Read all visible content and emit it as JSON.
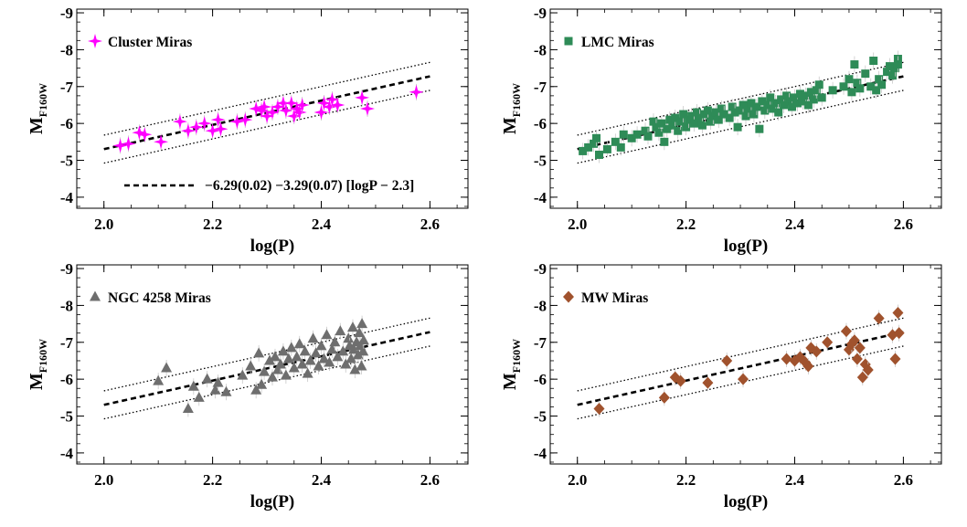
{
  "chart_data": [
    {
      "type": "scatter",
      "legend": {
        "label": "Cluster Miras",
        "marker": "star",
        "position": "top-left"
      },
      "color": "#ff00ff",
      "xlabel": "log(P)",
      "ylabel_main": "M",
      "ylabel_sub": "F160W",
      "xlim": [
        1.95,
        2.67
      ],
      "ylim": [
        -3.7,
        -9.1
      ],
      "y_inverted": true,
      "xticks": [
        "2.0",
        "2.2",
        "2.4",
        "2.6"
      ],
      "yticks": [
        "-4",
        "-5",
        "-6",
        "-7",
        "-8",
        "-9"
      ],
      "fit_label": "−6.29(0.02) −3.29(0.07) [logP − 2.3]",
      "fit": {
        "intercept": -6.29,
        "slope": -3.29,
        "pivot": 2.3,
        "scatter": 0.38,
        "x_range": [
          2.0,
          2.6
        ]
      },
      "points": [
        {
          "x": 2.03,
          "y": -5.4
        },
        {
          "x": 2.045,
          "y": -5.45
        },
        {
          "x": 2.065,
          "y": -5.75
        },
        {
          "x": 2.075,
          "y": -5.7
        },
        {
          "x": 2.105,
          "y": -5.5
        },
        {
          "x": 2.14,
          "y": -6.05
        },
        {
          "x": 2.155,
          "y": -5.8
        },
        {
          "x": 2.17,
          "y": -5.9
        },
        {
          "x": 2.185,
          "y": -6.0
        },
        {
          "x": 2.2,
          "y": -5.8
        },
        {
          "x": 2.21,
          "y": -6.1
        },
        {
          "x": 2.215,
          "y": -5.85
        },
        {
          "x": 2.245,
          "y": -6.05
        },
        {
          "x": 2.26,
          "y": -6.1
        },
        {
          "x": 2.28,
          "y": -6.4
        },
        {
          "x": 2.29,
          "y": -6.35
        },
        {
          "x": 2.295,
          "y": -6.45
        },
        {
          "x": 2.3,
          "y": -6.2
        },
        {
          "x": 2.31,
          "y": -6.3
        },
        {
          "x": 2.32,
          "y": -6.45
        },
        {
          "x": 2.33,
          "y": -6.55
        },
        {
          "x": 2.335,
          "y": -6.35
        },
        {
          "x": 2.345,
          "y": -6.55
        },
        {
          "x": 2.35,
          "y": -6.2
        },
        {
          "x": 2.355,
          "y": -6.4
        },
        {
          "x": 2.36,
          "y": -6.3
        },
        {
          "x": 2.365,
          "y": -6.5
        },
        {
          "x": 2.4,
          "y": -6.3
        },
        {
          "x": 2.405,
          "y": -6.55
        },
        {
          "x": 2.415,
          "y": -6.45
        },
        {
          "x": 2.42,
          "y": -6.65
        },
        {
          "x": 2.43,
          "y": -6.5
        },
        {
          "x": 2.475,
          "y": -6.7
        },
        {
          "x": 2.485,
          "y": -6.4
        },
        {
          "x": 2.575,
          "y": -6.85
        }
      ]
    },
    {
      "type": "scatter",
      "legend": {
        "label": "LMC Miras",
        "marker": "square",
        "position": "top-left"
      },
      "color": "#2e8b57",
      "xlabel": "log(P)",
      "ylabel_main": "M",
      "ylabel_sub": "F160W",
      "xlim": [
        1.95,
        2.67
      ],
      "ylim": [
        -3.7,
        -9.1
      ],
      "y_inverted": true,
      "xticks": [
        "2.0",
        "2.2",
        "2.4",
        "2.6"
      ],
      "yticks": [
        "-4",
        "-5",
        "-6",
        "-7",
        "-8",
        "-9"
      ],
      "fit_label": "",
      "fit": {
        "intercept": -6.29,
        "slope": -3.29,
        "pivot": 2.3,
        "scatter": 0.38,
        "x_range": [
          2.0,
          2.6
        ]
      },
      "points": [
        {
          "x": 2.01,
          "y": -5.25
        },
        {
          "x": 2.02,
          "y": -5.35
        },
        {
          "x": 2.03,
          "y": -5.45
        },
        {
          "x": 2.035,
          "y": -5.6
        },
        {
          "x": 2.04,
          "y": -5.15
        },
        {
          "x": 2.055,
          "y": -5.3
        },
        {
          "x": 2.07,
          "y": -5.5
        },
        {
          "x": 2.08,
          "y": -5.35
        },
        {
          "x": 2.085,
          "y": -5.7
        },
        {
          "x": 2.1,
          "y": -5.6
        },
        {
          "x": 2.11,
          "y": -5.7
        },
        {
          "x": 2.125,
          "y": -5.8
        },
        {
          "x": 2.13,
          "y": -5.65
        },
        {
          "x": 2.14,
          "y": -6.05
        },
        {
          "x": 2.145,
          "y": -5.9
        },
        {
          "x": 2.15,
          "y": -5.75
        },
        {
          "x": 2.155,
          "y": -6.0
        },
        {
          "x": 2.16,
          "y": -5.5
        },
        {
          "x": 2.165,
          "y": -5.85
        },
        {
          "x": 2.17,
          "y": -6.1
        },
        {
          "x": 2.175,
          "y": -5.95
        },
        {
          "x": 2.18,
          "y": -6.15
        },
        {
          "x": 2.185,
          "y": -5.8
        },
        {
          "x": 2.19,
          "y": -6.05
        },
        {
          "x": 2.195,
          "y": -6.25
        },
        {
          "x": 2.2,
          "y": -5.9
        },
        {
          "x": 2.205,
          "y": -6.1
        },
        {
          "x": 2.21,
          "y": -6.2
        },
        {
          "x": 2.215,
          "y": -6.0
        },
        {
          "x": 2.22,
          "y": -6.3
        },
        {
          "x": 2.225,
          "y": -6.15
        },
        {
          "x": 2.23,
          "y": -5.95
        },
        {
          "x": 2.235,
          "y": -6.25
        },
        {
          "x": 2.24,
          "y": -6.35
        },
        {
          "x": 2.245,
          "y": -6.05
        },
        {
          "x": 2.25,
          "y": -6.2
        },
        {
          "x": 2.255,
          "y": -6.3
        },
        {
          "x": 2.26,
          "y": -6.1
        },
        {
          "x": 2.265,
          "y": -6.4
        },
        {
          "x": 2.27,
          "y": -6.25
        },
        {
          "x": 2.28,
          "y": -6.15
        },
        {
          "x": 2.285,
          "y": -6.45
        },
        {
          "x": 2.29,
          "y": -6.3
        },
        {
          "x": 2.295,
          "y": -5.9
        },
        {
          "x": 2.3,
          "y": -6.35
        },
        {
          "x": 2.305,
          "y": -6.5
        },
        {
          "x": 2.31,
          "y": -6.2
        },
        {
          "x": 2.315,
          "y": -6.4
        },
        {
          "x": 2.32,
          "y": -6.55
        },
        {
          "x": 2.325,
          "y": -6.25
        },
        {
          "x": 2.33,
          "y": -6.45
        },
        {
          "x": 2.335,
          "y": -5.85
        },
        {
          "x": 2.34,
          "y": -6.6
        },
        {
          "x": 2.345,
          "y": -6.35
        },
        {
          "x": 2.35,
          "y": -6.5
        },
        {
          "x": 2.355,
          "y": -6.7
        },
        {
          "x": 2.36,
          "y": -6.4
        },
        {
          "x": 2.365,
          "y": -6.55
        },
        {
          "x": 2.37,
          "y": -6.3
        },
        {
          "x": 2.375,
          "y": -6.65
        },
        {
          "x": 2.38,
          "y": -6.5
        },
        {
          "x": 2.385,
          "y": -6.75
        },
        {
          "x": 2.39,
          "y": -6.6
        },
        {
          "x": 2.395,
          "y": -6.45
        },
        {
          "x": 2.4,
          "y": -6.7
        },
        {
          "x": 2.405,
          "y": -6.55
        },
        {
          "x": 2.41,
          "y": -6.8
        },
        {
          "x": 2.415,
          "y": -6.6
        },
        {
          "x": 2.42,
          "y": -6.75
        },
        {
          "x": 2.425,
          "y": -6.5
        },
        {
          "x": 2.43,
          "y": -6.85
        },
        {
          "x": 2.435,
          "y": -6.65
        },
        {
          "x": 2.44,
          "y": -6.9
        },
        {
          "x": 2.445,
          "y": -7.05
        },
        {
          "x": 2.45,
          "y": -6.7
        },
        {
          "x": 2.47,
          "y": -6.9
        },
        {
          "x": 2.49,
          "y": -7.0
        },
        {
          "x": 2.5,
          "y": -7.2
        },
        {
          "x": 2.505,
          "y": -6.85
        },
        {
          "x": 2.51,
          "y": -7.6
        },
        {
          "x": 2.515,
          "y": -7.1
        },
        {
          "x": 2.52,
          "y": -6.95
        },
        {
          "x": 2.53,
          "y": -7.35
        },
        {
          "x": 2.54,
          "y": -7.0
        },
        {
          "x": 2.545,
          "y": -7.7
        },
        {
          "x": 2.55,
          "y": -6.9
        },
        {
          "x": 2.555,
          "y": -7.2
        },
        {
          "x": 2.56,
          "y": -7.05
        },
        {
          "x": 2.57,
          "y": -7.4
        },
        {
          "x": 2.575,
          "y": -7.55
        },
        {
          "x": 2.58,
          "y": -7.3
        },
        {
          "x": 2.585,
          "y": -7.5
        },
        {
          "x": 2.59,
          "y": -7.75
        },
        {
          "x": 2.59,
          "y": -7.6
        }
      ]
    },
    {
      "type": "scatter",
      "legend": {
        "label": "NGC 4258 Miras",
        "marker": "triangle",
        "position": "top-left"
      },
      "color": "#6e6e6e",
      "xlabel": "log(P)",
      "ylabel_main": "M",
      "ylabel_sub": "F160W",
      "xlim": [
        1.95,
        2.67
      ],
      "ylim": [
        -3.7,
        -9.1
      ],
      "y_inverted": true,
      "xticks": [
        "2.0",
        "2.2",
        "2.4",
        "2.6"
      ],
      "yticks": [
        "-4",
        "-5",
        "-6",
        "-7",
        "-8",
        "-9"
      ],
      "fit_label": "",
      "fit": {
        "intercept": -6.29,
        "slope": -3.29,
        "pivot": 2.3,
        "scatter": 0.38,
        "x_range": [
          2.0,
          2.6
        ]
      },
      "points": [
        {
          "x": 2.1,
          "y": -5.95
        },
        {
          "x": 2.115,
          "y": -6.3
        },
        {
          "x": 2.155,
          "y": -5.2
        },
        {
          "x": 2.165,
          "y": -5.8
        },
        {
          "x": 2.175,
          "y": -5.5
        },
        {
          "x": 2.19,
          "y": -6.0
        },
        {
          "x": 2.205,
          "y": -5.7
        },
        {
          "x": 2.21,
          "y": -5.9
        },
        {
          "x": 2.225,
          "y": -5.65
        },
        {
          "x": 2.255,
          "y": -6.1
        },
        {
          "x": 2.27,
          "y": -6.35
        },
        {
          "x": 2.28,
          "y": -5.7
        },
        {
          "x": 2.285,
          "y": -6.7
        },
        {
          "x": 2.29,
          "y": -5.85
        },
        {
          "x": 2.295,
          "y": -6.2
        },
        {
          "x": 2.305,
          "y": -6.5
        },
        {
          "x": 2.31,
          "y": -6.05
        },
        {
          "x": 2.315,
          "y": -6.6
        },
        {
          "x": 2.32,
          "y": -6.25
        },
        {
          "x": 2.325,
          "y": -6.4
        },
        {
          "x": 2.33,
          "y": -6.75
        },
        {
          "x": 2.335,
          "y": -6.1
        },
        {
          "x": 2.34,
          "y": -6.55
        },
        {
          "x": 2.345,
          "y": -6.85
        },
        {
          "x": 2.35,
          "y": -6.3
        },
        {
          "x": 2.355,
          "y": -6.6
        },
        {
          "x": 2.36,
          "y": -6.95
        },
        {
          "x": 2.365,
          "y": -6.4
        },
        {
          "x": 2.37,
          "y": -6.75
        },
        {
          "x": 2.375,
          "y": -6.15
        },
        {
          "x": 2.38,
          "y": -6.5
        },
        {
          "x": 2.385,
          "y": -7.1
        },
        {
          "x": 2.39,
          "y": -6.7
        },
        {
          "x": 2.395,
          "y": -6.35
        },
        {
          "x": 2.4,
          "y": -6.9
        },
        {
          "x": 2.405,
          "y": -6.55
        },
        {
          "x": 2.41,
          "y": -7.2
        },
        {
          "x": 2.415,
          "y": -6.45
        },
        {
          "x": 2.42,
          "y": -6.8
        },
        {
          "x": 2.425,
          "y": -7.0
        },
        {
          "x": 2.43,
          "y": -6.6
        },
        {
          "x": 2.435,
          "y": -7.3
        },
        {
          "x": 2.44,
          "y": -6.75
        },
        {
          "x": 2.445,
          "y": -6.4
        },
        {
          "x": 2.45,
          "y": -7.1
        },
        {
          "x": 2.452,
          "y": -6.9
        },
        {
          "x": 2.455,
          "y": -6.55
        },
        {
          "x": 2.458,
          "y": -7.4
        },
        {
          "x": 2.46,
          "y": -6.8
        },
        {
          "x": 2.462,
          "y": -6.25
        },
        {
          "x": 2.465,
          "y": -7.0
        },
        {
          "x": 2.468,
          "y": -6.65
        },
        {
          "x": 2.47,
          "y": -7.25
        },
        {
          "x": 2.472,
          "y": -6.9
        },
        {
          "x": 2.474,
          "y": -6.35
        },
        {
          "x": 2.475,
          "y": -7.5
        },
        {
          "x": 2.477,
          "y": -6.75
        },
        {
          "x": 2.478,
          "y": -7.05
        }
      ]
    },
    {
      "type": "scatter",
      "legend": {
        "label": "MW Miras",
        "marker": "diamond",
        "position": "top-left"
      },
      "color": "#a0522d",
      "xlabel": "log(P)",
      "ylabel_main": "M",
      "ylabel_sub": "F160W",
      "xlim": [
        1.95,
        2.67
      ],
      "ylim": [
        -3.7,
        -9.1
      ],
      "y_inverted": true,
      "xticks": [
        "2.0",
        "2.2",
        "2.4",
        "2.6"
      ],
      "yticks": [
        "-4",
        "-5",
        "-6",
        "-7",
        "-8",
        "-9"
      ],
      "fit_label": "",
      "fit": {
        "intercept": -6.29,
        "slope": -3.29,
        "pivot": 2.3,
        "scatter": 0.38,
        "x_range": [
          2.0,
          2.6
        ]
      },
      "points": [
        {
          "x": 2.04,
          "y": -5.2
        },
        {
          "x": 2.16,
          "y": -5.5
        },
        {
          "x": 2.18,
          "y": -6.05
        },
        {
          "x": 2.19,
          "y": -5.95
        },
        {
          "x": 2.24,
          "y": -5.9
        },
        {
          "x": 2.275,
          "y": -6.5
        },
        {
          "x": 2.305,
          "y": -6.0
        },
        {
          "x": 2.385,
          "y": -6.55
        },
        {
          "x": 2.4,
          "y": -6.5
        },
        {
          "x": 2.41,
          "y": -6.6
        },
        {
          "x": 2.42,
          "y": -6.45
        },
        {
          "x": 2.425,
          "y": -6.35
        },
        {
          "x": 2.43,
          "y": -6.85
        },
        {
          "x": 2.44,
          "y": -6.75
        },
        {
          "x": 2.46,
          "y": -7.0
        },
        {
          "x": 2.495,
          "y": -7.3
        },
        {
          "x": 2.5,
          "y": -6.8
        },
        {
          "x": 2.505,
          "y": -6.95
        },
        {
          "x": 2.51,
          "y": -7.05
        },
        {
          "x": 2.515,
          "y": -6.55
        },
        {
          "x": 2.52,
          "y": -6.85
        },
        {
          "x": 2.525,
          "y": -6.05
        },
        {
          "x": 2.53,
          "y": -6.4
        },
        {
          "x": 2.535,
          "y": -6.25
        },
        {
          "x": 2.555,
          "y": -7.65
        },
        {
          "x": 2.58,
          "y": -7.2
        },
        {
          "x": 2.585,
          "y": -6.55
        },
        {
          "x": 2.59,
          "y": -7.8
        },
        {
          "x": 2.592,
          "y": -7.25
        }
      ]
    }
  ]
}
